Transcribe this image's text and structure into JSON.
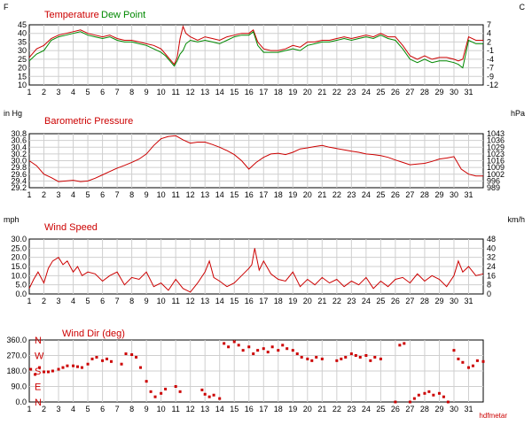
{
  "colors": {
    "red": "#cc0000",
    "green": "#008800",
    "grid": "#cfcfcf",
    "axis": "#000000"
  },
  "footer": "hdfmetar",
  "chart_data": [
    {
      "id": "temperature",
      "type": "line",
      "title": "Temperature",
      "title2": "Dew Point",
      "left_unit": "F",
      "right_unit": "C",
      "ylim": [
        10,
        45
      ],
      "yticks": [
        "45",
        "40",
        "35",
        "30",
        "25",
        "20",
        "15",
        "10"
      ],
      "yticks_right": [
        "7",
        "4",
        "2",
        "-1",
        "-4",
        "-7",
        "-9",
        "-12"
      ],
      "x_ticks": [
        "1",
        "2",
        "3",
        "4",
        "5",
        "6",
        "7",
        "8",
        "9",
        "10",
        "11",
        "12",
        "13",
        "14",
        "15",
        "16",
        "17",
        "18",
        "19",
        "20",
        "21",
        "22",
        "23",
        "24",
        "25",
        "26",
        "27",
        "28",
        "29",
        "30",
        "31"
      ],
      "series": [
        {
          "name": "Temperature",
          "color": "red",
          "x": [
            1,
            1.5,
            2,
            2.5,
            3,
            3.5,
            4,
            4.5,
            5,
            5.5,
            6,
            6.5,
            7,
            7.5,
            8,
            8.5,
            9,
            9.5,
            10,
            10.3,
            10.6,
            10.9,
            11.1,
            11.3,
            11.5,
            11.7,
            12,
            12.5,
            13,
            13.5,
            14,
            14.5,
            15,
            15.5,
            16,
            16.3,
            16.6,
            17,
            17.5,
            18,
            18.5,
            19,
            19.5,
            20,
            20.5,
            21,
            21.5,
            22,
            22.5,
            23,
            23.5,
            24,
            24.5,
            25,
            25.5,
            26,
            26.5,
            27,
            27.5,
            28,
            28.5,
            29,
            29.5,
            30,
            30.3,
            30.6,
            31,
            31.5,
            32
          ],
          "y": [
            26,
            31,
            33,
            37,
            39,
            40,
            41,
            42,
            40,
            39,
            38,
            39,
            37,
            36,
            36,
            35,
            34,
            33,
            31,
            28,
            25,
            22,
            26,
            37,
            44,
            40,
            38,
            36,
            38,
            37,
            36,
            38,
            39,
            40,
            40,
            42,
            35,
            31,
            30,
            30,
            31,
            33,
            32,
            35,
            35,
            36,
            36,
            37,
            38,
            37,
            38,
            39,
            38,
            40,
            38,
            38,
            33,
            27,
            25,
            27,
            25,
            26,
            26,
            25,
            24,
            25,
            38,
            36,
            36
          ]
        },
        {
          "name": "Dew Point",
          "color": "green",
          "x": [
            1,
            1.5,
            2,
            2.5,
            3,
            3.5,
            4,
            4.5,
            5,
            5.5,
            6,
            6.5,
            7,
            7.5,
            8,
            8.5,
            9,
            9.5,
            10,
            10.3,
            10.6,
            10.9,
            11.1,
            11.3,
            11.5,
            11.7,
            12,
            12.5,
            13,
            13.5,
            14,
            14.5,
            15,
            15.5,
            16,
            16.3,
            16.6,
            17,
            17.5,
            18,
            18.5,
            19,
            19.5,
            20,
            20.5,
            21,
            21.5,
            22,
            22.5,
            23,
            23.5,
            24,
            24.5,
            25,
            25.5,
            26,
            26.5,
            27,
            27.5,
            28,
            28.5,
            29,
            29.5,
            30,
            30.3,
            30.6,
            31,
            31.5,
            32
          ],
          "y": [
            24,
            28,
            30,
            36,
            38,
            39,
            40,
            41,
            39,
            38,
            37,
            38,
            36,
            35,
            35,
            34,
            33,
            31,
            29,
            27,
            24,
            21,
            24,
            28,
            30,
            34,
            36,
            35,
            36,
            35,
            34,
            36,
            38,
            39,
            39,
            41,
            33,
            29,
            29,
            29,
            30,
            31,
            30,
            33,
            34,
            35,
            35,
            36,
            37,
            36,
            37,
            38,
            37,
            39,
            37,
            36,
            31,
            25,
            23,
            25,
            23,
            24,
            24,
            23,
            22,
            20,
            36,
            34,
            34
          ]
        }
      ]
    },
    {
      "id": "pressure",
      "type": "line",
      "title": "Barometric Pressure",
      "left_unit": "in Hg",
      "right_unit": "hPa",
      "ylim": [
        29.2,
        30.8
      ],
      "yticks": [
        "30.8",
        "30.6",
        "30.4",
        "30.2",
        "30.0",
        "29.8",
        "29.6",
        "29.4",
        "29.2"
      ],
      "yticks_right": [
        "1043",
        "1036",
        "1029",
        "1023",
        "1016",
        "1009",
        "1002",
        "996",
        "989"
      ],
      "x_ticks": [
        "1",
        "2",
        "3",
        "4",
        "5",
        "6",
        "7",
        "8",
        "9",
        "10",
        "11",
        "12",
        "13",
        "14",
        "15",
        "16",
        "17",
        "18",
        "19",
        "20",
        "21",
        "22",
        "23",
        "24",
        "25",
        "26",
        "27",
        "28",
        "29",
        "30",
        "31"
      ],
      "series": [
        {
          "name": "Barometric Pressure",
          "color": "red",
          "x": [
            1,
            1.5,
            2,
            2.5,
            3,
            3.5,
            4,
            4.5,
            5,
            5.5,
            6,
            6.5,
            7,
            7.5,
            8,
            8.5,
            9,
            9.5,
            10,
            10.5,
            11,
            11.5,
            12,
            12.5,
            13,
            13.5,
            14,
            14.5,
            15,
            15.5,
            16,
            16.5,
            17,
            17.5,
            18,
            18.5,
            19,
            19.5,
            20,
            20.5,
            21,
            21.5,
            22,
            22.5,
            23,
            23.5,
            24,
            24.5,
            25,
            25.5,
            26,
            26.5,
            27,
            27.5,
            28,
            28.5,
            29,
            29.5,
            30,
            30.5,
            31,
            31.5,
            32
          ],
          "y": [
            30.0,
            29.85,
            29.6,
            29.5,
            29.38,
            29.4,
            29.42,
            29.38,
            29.4,
            29.48,
            29.58,
            29.68,
            29.78,
            29.86,
            29.95,
            30.05,
            30.2,
            30.45,
            30.65,
            30.72,
            30.74,
            30.62,
            30.52,
            30.55,
            30.55,
            30.48,
            30.4,
            30.3,
            30.18,
            30.0,
            29.75,
            29.95,
            30.1,
            30.2,
            30.22,
            30.18,
            30.25,
            30.35,
            30.38,
            30.42,
            30.45,
            30.4,
            30.36,
            30.32,
            30.28,
            30.25,
            30.2,
            30.18,
            30.15,
            30.1,
            30.02,
            29.95,
            29.88,
            29.9,
            29.92,
            29.98,
            30.05,
            30.08,
            30.12,
            29.75,
            29.6,
            29.55,
            29.55
          ]
        }
      ]
    },
    {
      "id": "wind_speed",
      "type": "line",
      "title": "Wind Speed",
      "left_unit": "mph",
      "right_unit": "km/h",
      "ylim": [
        0,
        30
      ],
      "yticks": [
        "30.0",
        "25.0",
        "20.0",
        "15.0",
        "10.0",
        "5.0",
        "0.0"
      ],
      "yticks_right": [
        "48",
        "40",
        "32",
        "24",
        "16",
        "8",
        "0"
      ],
      "x_ticks": [
        "1",
        "2",
        "3",
        "4",
        "5",
        "6",
        "7",
        "8",
        "9",
        "10",
        "11",
        "12",
        "13",
        "14",
        "15",
        "16",
        "17",
        "18",
        "19",
        "20",
        "21",
        "22",
        "23",
        "24",
        "25",
        "26",
        "27",
        "28",
        "29",
        "30",
        "31"
      ],
      "series": [
        {
          "name": "Wind Speed",
          "color": "red",
          "x": [
            1,
            1.3,
            1.6,
            2,
            2.3,
            2.6,
            3,
            3.3,
            3.6,
            4,
            4.3,
            4.6,
            5,
            5.5,
            6,
            6.5,
            7,
            7.5,
            8,
            8.5,
            9,
            9.5,
            10,
            10.5,
            11,
            11.5,
            12,
            12.5,
            13,
            13.3,
            13.6,
            14,
            14.5,
            15,
            15.5,
            16,
            16.2,
            16.4,
            16.7,
            17,
            17.5,
            18,
            18.5,
            19,
            19.5,
            20,
            20.5,
            21,
            21.5,
            22,
            22.5,
            23,
            23.5,
            24,
            24.5,
            25,
            25.5,
            26,
            26.5,
            27,
            27.5,
            28,
            28.5,
            29,
            29.5,
            30,
            30.3,
            30.6,
            31,
            31.5,
            32
          ],
          "y": [
            3,
            8,
            12,
            6,
            14,
            18,
            20,
            16,
            18,
            12,
            15,
            10,
            12,
            11,
            7,
            10,
            12,
            5,
            9,
            8,
            12,
            4,
            6,
            2,
            8,
            3,
            1,
            6,
            12,
            18,
            9,
            7,
            4,
            6,
            10,
            14,
            16,
            25,
            13,
            18,
            11,
            8,
            7,
            12,
            4,
            8,
            5,
            9,
            6,
            8,
            4,
            7,
            5,
            9,
            3,
            7,
            4,
            8,
            9,
            6,
            11,
            7,
            10,
            8,
            4,
            10,
            18,
            12,
            15,
            10,
            11
          ]
        }
      ]
    },
    {
      "id": "wind_dir",
      "type": "scatter",
      "title": "Wind Dir (deg)",
      "ylim": [
        0,
        360
      ],
      "yticks": [
        "360.0",
        "270.0",
        "180.0",
        "90.0",
        "0.0"
      ],
      "compass": [
        "N",
        "W",
        "S",
        "E",
        "N"
      ],
      "x_ticks": [
        "1",
        "2",
        "3",
        "4",
        "5",
        "6",
        "7",
        "8",
        "9",
        "10",
        "11",
        "12",
        "13",
        "14",
        "15",
        "16",
        "17",
        "18",
        "19",
        "20",
        "21",
        "22",
        "23",
        "24",
        "25",
        "26",
        "27",
        "28",
        "29",
        "30",
        "31"
      ],
      "series": [
        {
          "name": "Wind Dir (deg)",
          "color": "red",
          "x": [
            1.1,
            1.4,
            1.7,
            2,
            2.3,
            2.6,
            3,
            3.3,
            3.6,
            4,
            4.3,
            4.6,
            5,
            5.3,
            5.6,
            6,
            6.3,
            6.6,
            7.3,
            7.6,
            8,
            8.3,
            8.6,
            9,
            9.3,
            9.6,
            10,
            10.3,
            11,
            11.3,
            12.8,
            13,
            13.3,
            13.6,
            14,
            14.3,
            14.6,
            15,
            15.3,
            15.6,
            16,
            16.3,
            16.6,
            17,
            17.3,
            17.6,
            18,
            18.3,
            18.6,
            19,
            19.3,
            19.6,
            20,
            20.3,
            20.6,
            21,
            22,
            22.3,
            22.6,
            23,
            23.3,
            23.6,
            24,
            24.3,
            24.6,
            25,
            26,
            26.3,
            26.6,
            27,
            27.3,
            27.6,
            28,
            28.3,
            28.6,
            29,
            29.3,
            29.6,
            30,
            30.3,
            30.6,
            31,
            31.3,
            31.6,
            32
          ],
          "y": [
            190,
            160,
            200,
            175,
            175,
            180,
            190,
            200,
            210,
            210,
            205,
            200,
            220,
            250,
            260,
            240,
            250,
            235,
            220,
            280,
            275,
            260,
            200,
            120,
            60,
            30,
            50,
            75,
            90,
            60,
            70,
            45,
            30,
            40,
            20,
            340,
            320,
            350,
            330,
            300,
            320,
            280,
            300,
            310,
            290,
            320,
            300,
            330,
            310,
            300,
            280,
            260,
            250,
            240,
            260,
            250,
            240,
            250,
            260,
            280,
            270,
            260,
            270,
            240,
            260,
            250,
            0,
            330,
            340,
            0,
            20,
            40,
            50,
            60,
            40,
            50,
            30,
            0,
            300,
            250,
            230,
            200,
            210,
            240,
            235
          ]
        }
      ]
    }
  ]
}
